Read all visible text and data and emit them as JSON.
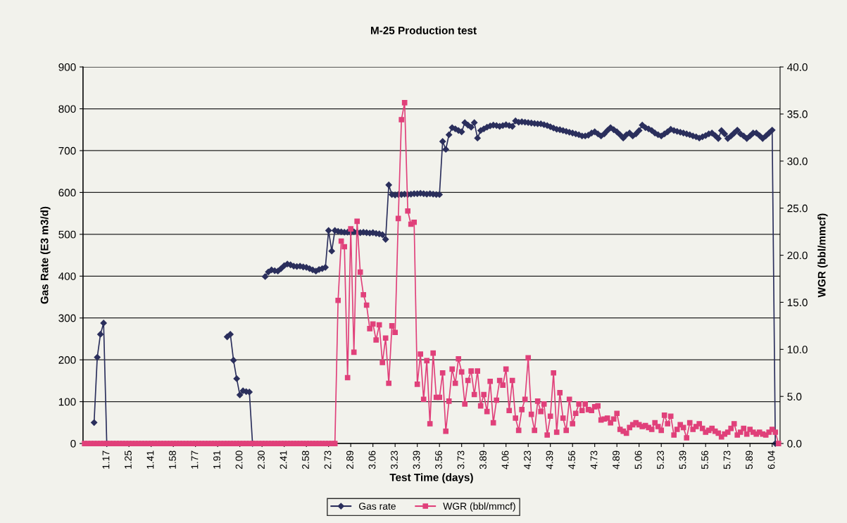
{
  "chart_data": {
    "type": "line",
    "title": "M-25 Production test",
    "xlabel": "Test Time (days)",
    "ylabel": "Gas Rate (E3 m3/d)",
    "y2label": "WGR (bbl/mmcf)",
    "categories": [
      null,
      null,
      null,
      null,
      null,
      null,
      null,
      "1.17",
      null,
      null,
      null,
      null,
      null,
      null,
      "1.25",
      null,
      null,
      null,
      null,
      null,
      null,
      "1.41",
      null,
      null,
      null,
      null,
      null,
      null,
      "1.58",
      null,
      null,
      null,
      null,
      null,
      null,
      "1.77",
      null,
      null,
      null,
      null,
      null,
      null,
      "1.91",
      null,
      null,
      null,
      null,
      null,
      null,
      "2.00",
      null,
      null,
      null,
      null,
      null,
      null,
      "2.30",
      null,
      null,
      null,
      null,
      null,
      null,
      "2.41",
      null,
      null,
      null,
      null,
      null,
      null,
      "2.58",
      null,
      null,
      null,
      null,
      null,
      null,
      "2.73",
      null,
      null,
      null,
      null,
      null,
      null,
      "2.89",
      null,
      null,
      null,
      null,
      null,
      null,
      "3.06",
      null,
      null,
      null,
      null,
      null,
      null,
      "3.23",
      null,
      null,
      null,
      null,
      null,
      null,
      "3.39",
      null,
      null,
      null,
      null,
      null,
      null,
      "3.56",
      null,
      null,
      null,
      null,
      null,
      null,
      "3.73",
      null,
      null,
      null,
      null,
      null,
      null,
      "3.89",
      null,
      null,
      null,
      null,
      null,
      null,
      "4.06",
      null,
      null,
      null,
      null,
      null,
      null,
      "4.23",
      null,
      null,
      null,
      null,
      null,
      null,
      "4.39",
      null,
      null,
      null,
      null,
      null,
      null,
      "4.56",
      null,
      null,
      null,
      null,
      null,
      null,
      "4.73",
      null,
      null,
      null,
      null,
      null,
      null,
      "4.89",
      null,
      null,
      null,
      null,
      null,
      null,
      "5.06",
      null,
      null,
      null,
      null,
      null,
      null,
      "5.23",
      null,
      null,
      null,
      null,
      null,
      null,
      "5.39",
      null,
      null,
      null,
      null,
      null,
      null,
      "5.56",
      null,
      null,
      null,
      null,
      null,
      null,
      "5.73",
      null,
      null,
      null,
      null,
      null,
      null,
      "5.89",
      null,
      null,
      null,
      null,
      null,
      null,
      "6.04",
      null,
      null
    ],
    "ylim": [
      0,
      900
    ],
    "yticks": [
      0,
      100,
      200,
      300,
      400,
      500,
      600,
      700,
      800,
      900
    ],
    "y2lim": [
      0,
      40
    ],
    "y2ticks": [
      {
        "value": 0,
        "label": "0.0"
      },
      {
        "value": 5,
        "label": "5.0"
      },
      {
        "value": 10,
        "label": "10.0"
      },
      {
        "value": 15,
        "label": "15.0"
      },
      {
        "value": 20,
        "label": "20.0"
      },
      {
        "value": 25,
        "label": "25.0"
      },
      {
        "value": 30,
        "label": "30.0"
      },
      {
        "value": 35,
        "label": "35.0"
      },
      {
        "value": 40,
        "label": "40.0"
      }
    ],
    "grid": "y",
    "legend": "bottom",
    "series": [
      {
        "name": "Gas rate",
        "color": "#2b2f5c",
        "marker": "diamond",
        "values": [
          null,
          null,
          null,
          50,
          206,
          261,
          288,
          0,
          null,
          null,
          null,
          null,
          null,
          null,
          null,
          null,
          null,
          null,
          null,
          null,
          null,
          null,
          null,
          null,
          null,
          null,
          null,
          null,
          null,
          null,
          null,
          null,
          null,
          null,
          null,
          null,
          null,
          null,
          null,
          null,
          null,
          null,
          null,
          null,
          null,
          255,
          261,
          199,
          155,
          116,
          126,
          124,
          123,
          0,
          null,
          null,
          null,
          399,
          410,
          415,
          413,
          412,
          418,
          425,
          429,
          427,
          424,
          423,
          424,
          422,
          421,
          418,
          415,
          412,
          416,
          418,
          421,
          509,
          460,
          509,
          507,
          506,
          505,
          505,
          504,
          506,
          505,
          504,
          505,
          504,
          503,
          504,
          502,
          501,
          499,
          488,
          618,
          595,
          594,
          595,
          595,
          596,
          595,
          596,
          597,
          597,
          598,
          597,
          596,
          597,
          596,
          595,
          595,
          722,
          703,
          738,
          755,
          752,
          748,
          745,
          767,
          761,
          756,
          767,
          730,
          748,
          752,
          756,
          759,
          761,
          760,
          758,
          760,
          762,
          760,
          758,
          771,
          768,
          769,
          768,
          767,
          766,
          765,
          764,
          764,
          762,
          760,
          757,
          754,
          751,
          750,
          748,
          746,
          744,
          742,
          740,
          738,
          735,
          735,
          737,
          742,
          745,
          740,
          735,
          740,
          748,
          755,
          750,
          745,
          738,
          730,
          738,
          742,
          735,
          740,
          748,
          761,
          755,
          752,
          748,
          742,
          738,
          735,
          740,
          745,
          751,
          748,
          746,
          744,
          742,
          740,
          738,
          735,
          733,
          730,
          733,
          736,
          740,
          742,
          736,
          729,
          748,
          740,
          729,
          735,
          742,
          749,
          740,
          735,
          729,
          735,
          742,
          742,
          736,
          729,
          735,
          742,
          749,
          0,
          null
        ]
      },
      {
        "name": "WGR (bbl/mmcf)",
        "color": "#e0407a",
        "marker": "square",
        "axis": "y2",
        "values": [
          0,
          0,
          0,
          0,
          0,
          0,
          0,
          0,
          0,
          0,
          0,
          0,
          0,
          0,
          0,
          0,
          0,
          0,
          0,
          0,
          0,
          0,
          0,
          0,
          0,
          0,
          0,
          0,
          0,
          0,
          0,
          0,
          0,
          0,
          0,
          0,
          0,
          0,
          0,
          0,
          0,
          0,
          0,
          0,
          0,
          0,
          0,
          0,
          0,
          0,
          0,
          0,
          0,
          0,
          0,
          0,
          0,
          0,
          0,
          0,
          0,
          0,
          0,
          0,
          0,
          0,
          0,
          0,
          0,
          0,
          0,
          0,
          0,
          0,
          0,
          0,
          0,
          0,
          0,
          0,
          15.2,
          21.5,
          20.9,
          7.0,
          22.8,
          9.7,
          23.6,
          18.2,
          15.8,
          14.7,
          12.2,
          12.7,
          11.0,
          12.6,
          8.6,
          11.2,
          6.4,
          12.5,
          11.8,
          23.9,
          34.4,
          36.2,
          24.7,
          23.3,
          23.5,
          6.3,
          9.5,
          4.7,
          8.8,
          2.1,
          9.6,
          4.9,
          4.9,
          7.5,
          1.3,
          4.5,
          7.9,
          6.4,
          9.0,
          7.6,
          4.2,
          6.7,
          7.7,
          5.2,
          7.7,
          4.0,
          5.2,
          3.4,
          6.6,
          2.2,
          4.6,
          6.7,
          6.2,
          7.9,
          3.5,
          6.7,
          2.7,
          1.4,
          3.6,
          4.7,
          9.1,
          3.1,
          1.4,
          4.5,
          3.4,
          4.2,
          0.9,
          2.9,
          7.5,
          1.2,
          5.4,
          2.7,
          1.4,
          4.7,
          2.1,
          3.2,
          4.2,
          3.5,
          4.2,
          3.6,
          3.5,
          3.9,
          4.0,
          2.5,
          2.6,
          2.7,
          2.2,
          2.6,
          3.2,
          1.5,
          1.3,
          1.1,
          1.7,
          2.0,
          2.2,
          2.0,
          1.8,
          1.9,
          1.7,
          1.5,
          2.2,
          1.8,
          1.4,
          3.0,
          2.1,
          2.9,
          0.9,
          1.5,
          2.0,
          1.7,
          0.6,
          2.2,
          1.5,
          1.8,
          2.1,
          1.6,
          1.2,
          1.4,
          1.6,
          1.3,
          1.1,
          0.7,
          1.0,
          1.2,
          1.6,
          2.1,
          0.9,
          1.2,
          1.6,
          1.0,
          1.5,
          1.2,
          1.0,
          1.2,
          1.0,
          0.9,
          1.2,
          1.5,
          1.2,
          0.0
        ]
      }
    ]
  }
}
